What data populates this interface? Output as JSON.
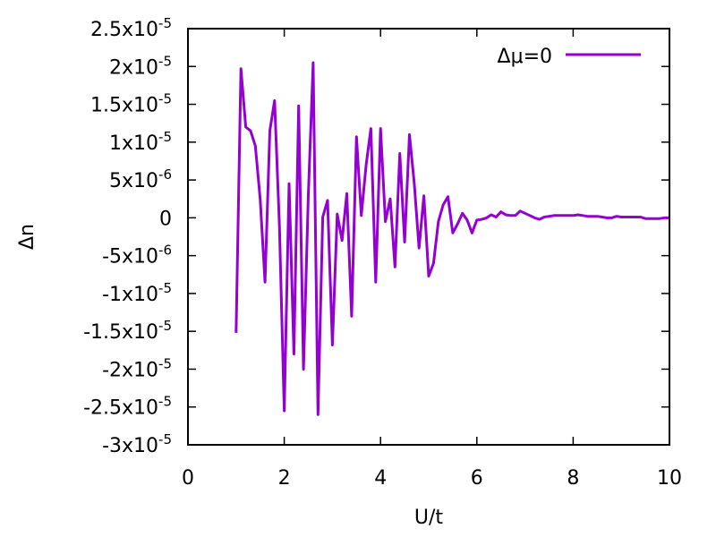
{
  "chart_data": {
    "type": "line",
    "title": "",
    "xlabel": "U/t",
    "ylabel": "Δn",
    "xlim": [
      0,
      10
    ],
    "ylim": [
      -3e-05,
      2.5e-05
    ],
    "grid": false,
    "legend_position": "top-right",
    "x_ticks": [
      {
        "value": 0,
        "label": "0"
      },
      {
        "value": 2,
        "label": "2"
      },
      {
        "value": 4,
        "label": "4"
      },
      {
        "value": 6,
        "label": "6"
      },
      {
        "value": 8,
        "label": "8"
      },
      {
        "value": 10,
        "label": "10"
      }
    ],
    "y_ticks": [
      {
        "value": 2.5e-05,
        "mantissa": "2.5x10",
        "exponent": "-5"
      },
      {
        "value": 2e-05,
        "mantissa": "2x10",
        "exponent": "-5"
      },
      {
        "value": 1.5e-05,
        "mantissa": "1.5x10",
        "exponent": "-5"
      },
      {
        "value": 1e-05,
        "mantissa": "1x10",
        "exponent": "-5"
      },
      {
        "value": 5e-06,
        "mantissa": "5x10",
        "exponent": "-6"
      },
      {
        "value": 0,
        "mantissa": "0",
        "exponent": ""
      },
      {
        "value": -5e-06,
        "mantissa": "-5x10",
        "exponent": "-6"
      },
      {
        "value": -1e-05,
        "mantissa": "-1x10",
        "exponent": "-5"
      },
      {
        "value": -1.5e-05,
        "mantissa": "-1.5x10",
        "exponent": "-5"
      },
      {
        "value": -2e-05,
        "mantissa": "-2x10",
        "exponent": "-5"
      },
      {
        "value": -2.5e-05,
        "mantissa": "-2.5x10",
        "exponent": "-5"
      },
      {
        "value": -3e-05,
        "mantissa": "-3x10",
        "exponent": "-5"
      }
    ],
    "series": [
      {
        "name": "Δμ=0",
        "color": "#9400d3",
        "x": [
          1.0,
          1.1,
          1.2,
          1.3,
          1.4,
          1.5,
          1.6,
          1.7,
          1.8,
          1.9,
          2.0,
          2.1,
          2.2,
          2.3,
          2.4,
          2.5,
          2.6,
          2.7,
          2.8,
          2.9,
          3.0,
          3.1,
          3.2,
          3.3,
          3.4,
          3.5,
          3.6,
          3.7,
          3.8,
          3.9,
          4.0,
          4.1,
          4.2,
          4.3,
          4.4,
          4.5,
          4.6,
          4.7,
          4.8,
          4.9,
          5.0,
          5.1,
          5.2,
          5.3,
          5.4,
          5.5,
          5.6,
          5.7,
          5.8,
          5.9,
          6.0,
          6.1,
          6.2,
          6.3,
          6.4,
          6.5,
          6.6,
          6.7,
          6.8,
          6.9,
          7.0,
          7.1,
          7.2,
          7.3,
          7.4,
          7.5,
          7.6,
          7.7,
          7.8,
          7.9,
          8.0,
          8.1,
          8.2,
          8.3,
          8.4,
          8.5,
          8.6,
          8.7,
          8.8,
          8.9,
          9.0,
          9.1,
          9.2,
          9.3,
          9.4,
          9.5,
          9.6,
          9.7,
          9.8,
          9.9,
          10.0
        ],
        "y": [
          -1.52e-05,
          1.97e-05,
          1.2e-05,
          1.15e-05,
          9.5e-06,
          2.5e-06,
          -8.5e-06,
          1.15e-05,
          1.55e-05,
          -1e-06,
          -2.55e-05,
          4.5e-06,
          -1.8e-05,
          1.48e-05,
          -2e-05,
          3e-06,
          2.05e-05,
          -2.6e-05,
          1e-07,
          2.3e-06,
          -1.68e-05,
          5e-07,
          -3e-06,
          3.2e-06,
          -1.3e-05,
          1.07e-05,
          3e-07,
          7e-06,
          1.18e-05,
          -8.5e-06,
          1.18e-05,
          -5e-07,
          2.5e-06,
          -6.5e-06,
          8.5e-06,
          -3.2e-06,
          1.1e-05,
          4.5e-06,
          -4e-06,
          2.9e-06,
          -7.7e-06,
          -6e-06,
          -5e-07,
          1.7e-06,
          2.8e-06,
          -2e-06,
          -8e-07,
          6e-07,
          -3e-07,
          -2e-06,
          -3e-07,
          -2e-07,
          0,
          4e-07,
          1e-07,
          8e-07,
          4e-07,
          3e-07,
          3e-07,
          9e-07,
          6e-07,
          3e-07,
          0,
          -2e-07,
          1e-07,
          2e-07,
          3e-07,
          3e-07,
          3e-07,
          3e-07,
          3e-07,
          4e-07,
          3e-07,
          2e-07,
          2e-07,
          2e-07,
          1e-07,
          0,
          0,
          2e-07,
          1e-07,
          1e-07,
          1e-07,
          1e-07,
          1e-07,
          -1e-07,
          -1e-07,
          -1e-07,
          -1e-07,
          0,
          0
        ]
      }
    ]
  }
}
